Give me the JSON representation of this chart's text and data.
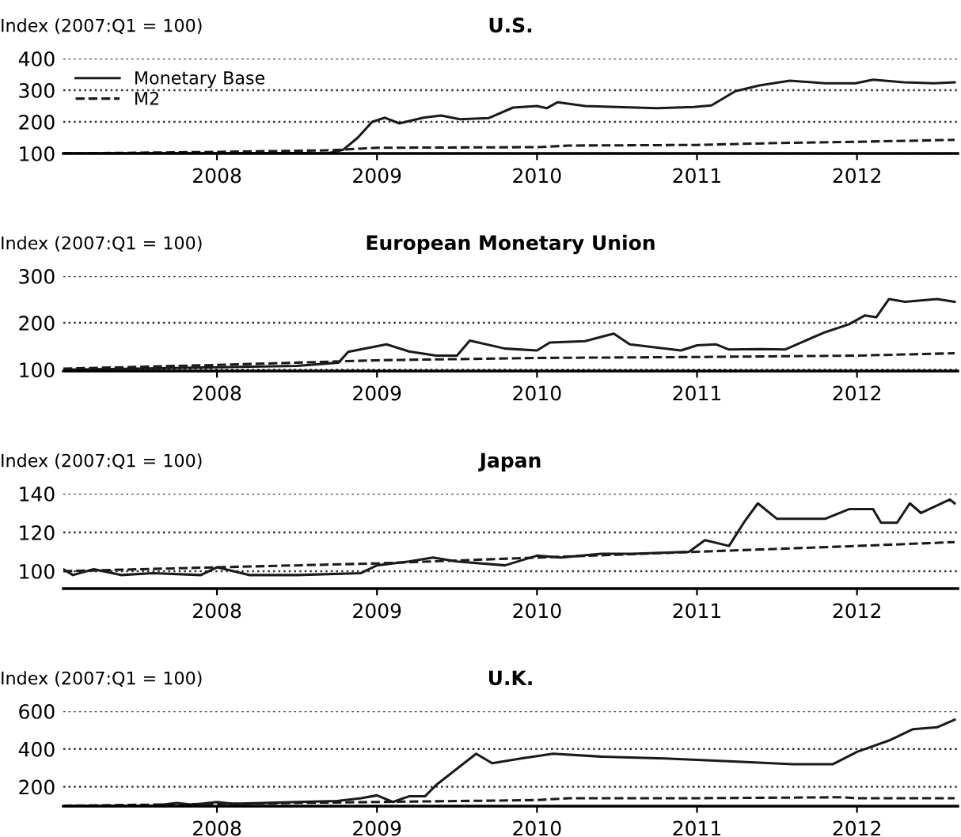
{
  "chart_data": [
    {
      "type": "line",
      "title": "U.S.",
      "ylabel": "Index (2007:Q1 = 100)",
      "xlim": [
        2007.04,
        2012.63
      ],
      "xticks": [
        2008,
        2009,
        2010,
        2011,
        2012
      ],
      "ylim": [
        100,
        400
      ],
      "yticks": [
        100,
        200,
        300,
        400
      ],
      "grid": "y",
      "legend": "top left",
      "series": [
        {
          "name": "Monetary Base",
          "color": "#1a1a1a",
          "line_style": "solid",
          "x": [
            2007.04,
            2008.0,
            2008.5,
            2008.69,
            2008.79,
            2008.88,
            2008.97,
            2009.05,
            2009.14,
            2009.29,
            2009.4,
            2009.52,
            2009.7,
            2009.85,
            2010.0,
            2010.06,
            2010.13,
            2010.3,
            2010.75,
            2010.98,
            2011.09,
            2011.24,
            2011.39,
            2011.58,
            2011.8,
            2011.99,
            2012.1,
            2012.29,
            2012.48,
            2012.61
          ],
          "values": [
            100,
            100,
            101,
            100,
            112,
            150,
            200,
            213,
            195,
            213,
            220,
            208,
            212,
            245,
            250,
            243,
            262,
            250,
            243,
            247,
            252,
            297,
            315,
            330,
            322,
            322,
            333,
            325,
            322,
            325
          ]
        },
        {
          "name": "M2",
          "color": "#1a1a1a",
          "line_style": "dashed",
          "x": [
            2007.04,
            2008.0,
            2008.7,
            2009.0,
            2010.0,
            2010.2,
            2011.0,
            2011.5,
            2012.0,
            2012.61
          ],
          "values": [
            100,
            105,
            110,
            118,
            120,
            125,
            127,
            133,
            137,
            143
          ]
        }
      ]
    },
    {
      "type": "line",
      "title": "European Monetary Union",
      "ylabel": "Index (2007:Q1 = 100)",
      "xlim": [
        2007.04,
        2012.63
      ],
      "xticks": [
        2008,
        2009,
        2010,
        2011,
        2012
      ],
      "ylim": [
        97,
        300
      ],
      "yticks": [
        100,
        200,
        300
      ],
      "grid": "y",
      "series": [
        {
          "color": "#1a1a1a",
          "line_style": "solid",
          "x": [
            2007.04,
            2007.5,
            2008.0,
            2008.5,
            2008.76,
            2008.82,
            2009.06,
            2009.2,
            2009.37,
            2009.5,
            2009.58,
            2009.8,
            2010.0,
            2010.08,
            2010.3,
            2010.48,
            2010.58,
            2010.9,
            2011.0,
            2011.12,
            2011.2,
            2011.4,
            2011.55,
            2011.8,
            2011.95,
            2012.05,
            2012.12,
            2012.2,
            2012.3,
            2012.4,
            2012.5,
            2012.61
          ],
          "values": [
            100,
            102,
            105,
            108,
            115,
            138,
            154,
            139,
            130,
            130,
            162,
            145,
            141,
            158,
            161,
            177,
            154,
            141,
            152,
            154,
            143,
            144,
            143,
            180,
            197,
            216,
            212,
            251,
            245,
            248,
            251,
            245
          ]
        },
        {
          "color": "#1a1a1a",
          "line_style": "dashed",
          "x": [
            2007.04,
            2008.0,
            2009.0,
            2010.0,
            2011.0,
            2012.0,
            2012.61
          ],
          "values": [
            102,
            110,
            120,
            125,
            127,
            130,
            135
          ]
        }
      ]
    },
    {
      "type": "line",
      "title": "Japan",
      "ylabel": "Index (2007:Q1 = 100)",
      "xlim": [
        2007.04,
        2012.63
      ],
      "xticks": [
        2008,
        2009,
        2010,
        2011,
        2012
      ],
      "ylim": [
        91,
        140
      ],
      "yticks": [
        100,
        120,
        140
      ],
      "grid": "y",
      "series": [
        {
          "color": "#1a1a1a",
          "line_style": "solid",
          "x": [
            2007.04,
            2007.1,
            2007.23,
            2007.4,
            2007.6,
            2007.9,
            2008.0,
            2008.2,
            2008.5,
            2008.9,
            2009.0,
            2009.2,
            2009.35,
            2009.5,
            2009.8,
            2010.0,
            2010.15,
            2010.4,
            2010.6,
            2010.95,
            2011.05,
            2011.2,
            2011.3,
            2011.38,
            2011.5,
            2011.8,
            2011.95,
            2012.1,
            2012.15,
            2012.25,
            2012.33,
            2012.4,
            2012.58,
            2012.61
          ],
          "values": [
            101,
            98,
            101,
            98,
            99,
            98,
            102,
            98,
            98,
            99,
            103,
            105,
            107,
            105,
            103,
            108,
            107,
            109,
            109,
            110,
            116,
            113,
            126,
            135,
            127,
            127,
            132,
            132,
            125,
            125,
            135,
            130,
            137,
            135
          ]
        },
        {
          "color": "#1a1a1a",
          "line_style": "dashed",
          "x": [
            2007.04,
            2008.0,
            2009.0,
            2010.0,
            2011.0,
            2012.0,
            2012.61
          ],
          "values": [
            100,
            102,
            104,
            107,
            110,
            113,
            115
          ]
        }
      ]
    },
    {
      "type": "line",
      "title": "U.K.",
      "ylabel": "Index (2007:Q1 = 100)",
      "xlim": [
        2007.04,
        2012.63
      ],
      "xticks": [
        2008,
        2009,
        2010,
        2011,
        2012
      ],
      "ylim": [
        98,
        600
      ],
      "yticks": [
        200,
        400,
        600
      ],
      "grid": "y",
      "series": [
        {
          "color": "#1a1a1a",
          "line_style": "solid",
          "x": [
            2007.04,
            2007.6,
            2007.75,
            2007.85,
            2008.0,
            2008.1,
            2008.5,
            2008.75,
            2008.9,
            2009.0,
            2009.1,
            2009.2,
            2009.3,
            2009.37,
            2009.62,
            2009.72,
            2009.9,
            2010.1,
            2010.4,
            2010.8,
            2011.2,
            2011.6,
            2011.85,
            2012.0,
            2012.2,
            2012.35,
            2012.5,
            2012.61
          ],
          "values": [
            100,
            100,
            115,
            105,
            120,
            110,
            120,
            125,
            140,
            155,
            120,
            150,
            150,
            210,
            375,
            325,
            350,
            375,
            360,
            350,
            335,
            320,
            320,
            385,
            445,
            505,
            515,
            555
          ]
        },
        {
          "color": "#1a1a1a",
          "line_style": "dashed",
          "x": [
            2007.04,
            2008.0,
            2009.0,
            2010.0,
            2010.2,
            2011.0,
            2011.9,
            2012.0,
            2012.61
          ],
          "values": [
            100,
            110,
            120,
            130,
            140,
            140,
            145,
            140,
            140
          ]
        }
      ]
    }
  ]
}
